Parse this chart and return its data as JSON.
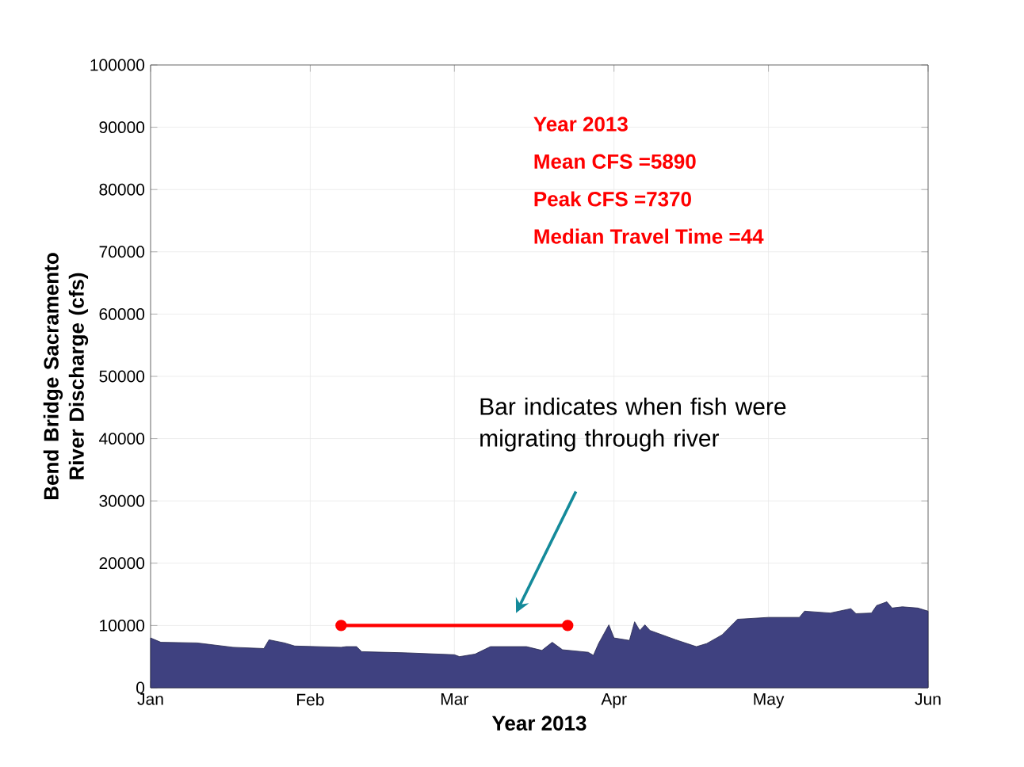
{
  "chart_data": {
    "type": "area",
    "xlabel": "Year 2013",
    "ylabel": "Bend Bridge Sacramento River Discharge (cfs)",
    "xlim": [
      "2013-01-01",
      "2013-06-01"
    ],
    "xticks": [
      {
        "value": "2013-01-01",
        "label": "Jan"
      },
      {
        "value": "2013-02-01",
        "label": "Feb"
      },
      {
        "value": "2013-03-01",
        "label": "Mar"
      },
      {
        "value": "2013-04-01",
        "label": "Apr"
      },
      {
        "value": "2013-05-01",
        "label": "May"
      },
      {
        "value": "2013-06-01",
        "label": "Jun"
      }
    ],
    "ylim": [
      0,
      100000
    ],
    "yticks": [
      0,
      10000,
      20000,
      30000,
      40000,
      50000,
      60000,
      70000,
      80000,
      90000,
      100000
    ],
    "grid": true,
    "series": [
      {
        "color": "#3f4180",
        "x": [
          "2013-01-01",
          "2013-01-03",
          "2013-01-10",
          "2013-01-17",
          "2013-01-23",
          "2013-01-24",
          "2013-01-27",
          "2013-01-29",
          "2013-02-07",
          "2013-02-08",
          "2013-02-10",
          "2013-02-11",
          "2013-02-20",
          "2013-03-01",
          "2013-03-02",
          "2013-03-05",
          "2013-03-08",
          "2013-03-15",
          "2013-03-18",
          "2013-03-20",
          "2013-03-22",
          "2013-03-27",
          "2013-03-28",
          "2013-03-29",
          "2013-03-31",
          "2013-04-01",
          "2013-04-04",
          "2013-04-05",
          "2013-04-06",
          "2013-04-07",
          "2013-04-08",
          "2013-04-13",
          "2013-04-17",
          "2013-04-19",
          "2013-04-22",
          "2013-04-25",
          "2013-05-01",
          "2013-05-07",
          "2013-05-08",
          "2013-05-13",
          "2013-05-17",
          "2013-05-18",
          "2013-05-21",
          "2013-05-22",
          "2013-05-24",
          "2013-05-25",
          "2013-05-27",
          "2013-05-30",
          "2013-06-01"
        ],
        "values": [
          8000,
          7300,
          7200,
          6500,
          6300,
          7700,
          7200,
          6700,
          6500,
          6600,
          6600,
          5800,
          5600,
          5300,
          5000,
          5400,
          6600,
          6600,
          6000,
          7300,
          6100,
          5700,
          5200,
          7100,
          10100,
          8000,
          7600,
          10600,
          9200,
          10100,
          9200,
          7700,
          6600,
          7100,
          8500,
          11000,
          11300,
          11300,
          12300,
          12000,
          12700,
          11900,
          12000,
          13200,
          13800,
          12800,
          13000,
          12800,
          12300
        ]
      },
      {
        "type": "line",
        "color": "#ff0000",
        "marker": "circle",
        "x": [
          "2013-02-07",
          "2013-03-23"
        ],
        "values": [
          10000,
          10000
        ]
      }
    ],
    "annotations": [
      "Year 2013",
      "Mean CFS =5890",
      "Peak CFS =7370",
      "Median Travel Time =44",
      "Bar indicates when fish were migrating through river"
    ]
  }
}
